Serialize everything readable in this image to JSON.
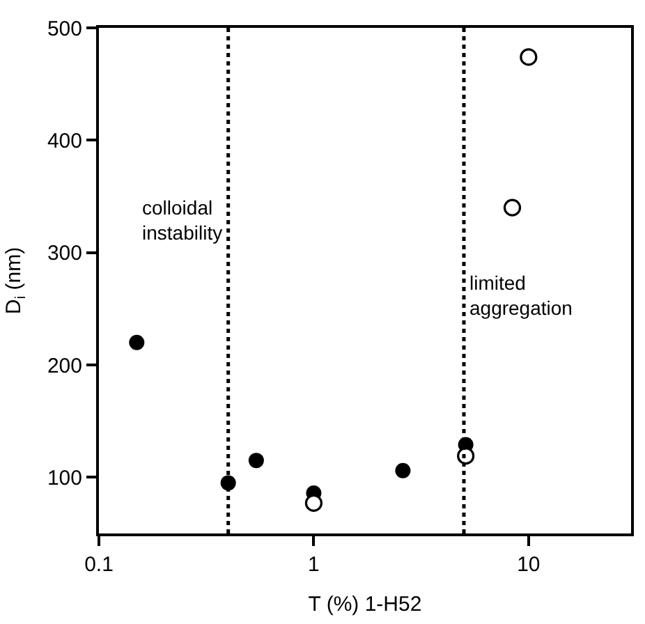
{
  "chart_data": {
    "type": "scatter",
    "xlabel": "T (%) 1-H52",
    "ylabel": "D$_{i}$ (nm)",
    "log": "x",
    "xlim": [
      0.1,
      30
    ],
    "xticks": [
      {
        "value": 0.1,
        "label": "0.1"
      },
      1,
      10
    ],
    "ylim": [
      50,
      500
    ],
    "yticks": [
      100,
      200,
      300,
      400,
      500
    ],
    "marker": "circle",
    "series": [
      {
        "color": "#000000",
        "x": [
          0.15,
          0.4,
          0.54,
          1,
          2.6,
          5.1
        ],
        "values": [
          220,
          95,
          115,
          86,
          106,
          129
        ]
      },
      {
        "color": "#ffffff",
        "x": [
          1,
          5.1,
          8.4,
          10
        ],
        "values": [
          77,
          119,
          340,
          474
        ]
      }
    ],
    "ref_lines": [
      {
        "axis": "x",
        "value": 0.4,
        "label": "colloidal instability",
        "line_style": "dotted",
        "color": "#000000"
      },
      {
        "axis": "x",
        "value": 5,
        "label": "limited aggregation",
        "line_style": "dotted",
        "color": "#000000"
      }
    ]
  }
}
